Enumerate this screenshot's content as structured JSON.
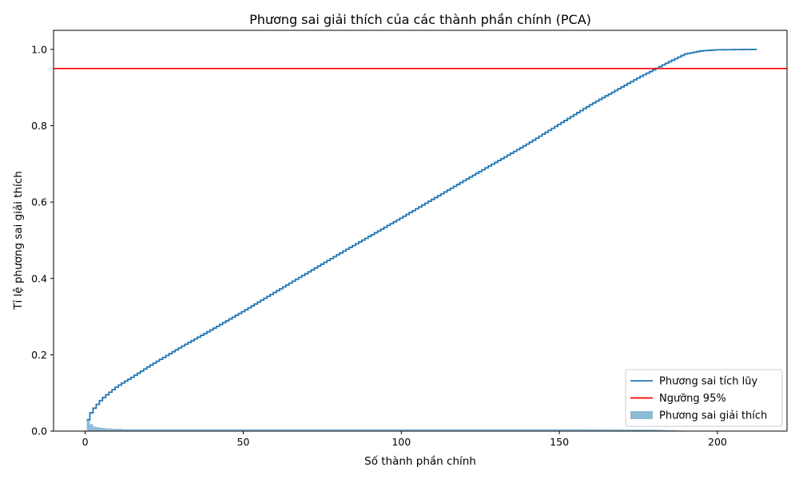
{
  "chart_data": {
    "type": "line",
    "title": "Phương sai giải thích của các thành phần chính (PCA)",
    "xlabel": "Số thành phần chính",
    "ylabel": "Tỉ lệ phương sai giải thích",
    "xlim": [
      -10,
      222
    ],
    "ylim": [
      0,
      1.05
    ],
    "x_ticks": [
      0,
      50,
      100,
      150,
      200
    ],
    "y_ticks": [
      0.0,
      0.2,
      0.4,
      0.6,
      0.8,
      1.0
    ],
    "x_tick_labels": [
      "0",
      "50",
      "100",
      "150",
      "200"
    ],
    "y_tick_labels": [
      "0.0",
      "0.2",
      "0.4",
      "0.6",
      "0.8",
      "1.0"
    ],
    "grid": false,
    "legend_position": "bottom-right",
    "n_components": 212,
    "series": [
      {
        "name": "Phương sai tích lũy",
        "kind": "step",
        "color": "#1f77b4",
        "x": [
          1,
          2,
          3,
          4,
          5,
          6,
          8,
          10,
          12,
          15,
          20,
          30,
          40,
          50,
          60,
          80,
          100,
          120,
          140,
          160,
          175,
          182,
          185,
          190,
          195,
          200,
          212
        ],
        "values": [
          0.03,
          0.048,
          0.06,
          0.07,
          0.08,
          0.088,
          0.102,
          0.115,
          0.126,
          0.141,
          0.168,
          0.218,
          0.265,
          0.313,
          0.363,
          0.462,
          0.558,
          0.656,
          0.752,
          0.855,
          0.925,
          0.955,
          0.968,
          0.988,
          0.996,
          0.999,
          1.0
        ]
      },
      {
        "name": "Ngưỡng 95%",
        "kind": "hline",
        "color": "#ff0000",
        "value": 0.95
      },
      {
        "name": "Phương sai giải thích",
        "kind": "bar",
        "color": "#1f77b4",
        "alpha": 0.5,
        "x": [
          1,
          2,
          3,
          4,
          5,
          6,
          7,
          8,
          9,
          10,
          11,
          12,
          15,
          20,
          50,
          100,
          150,
          180,
          190
        ],
        "values": [
          0.03,
          0.018,
          0.012,
          0.01,
          0.009,
          0.008,
          0.007,
          0.007,
          0.006,
          0.006,
          0.006,
          0.005,
          0.005,
          0.005,
          0.005,
          0.005,
          0.005,
          0.004,
          0.001
        ]
      }
    ]
  }
}
